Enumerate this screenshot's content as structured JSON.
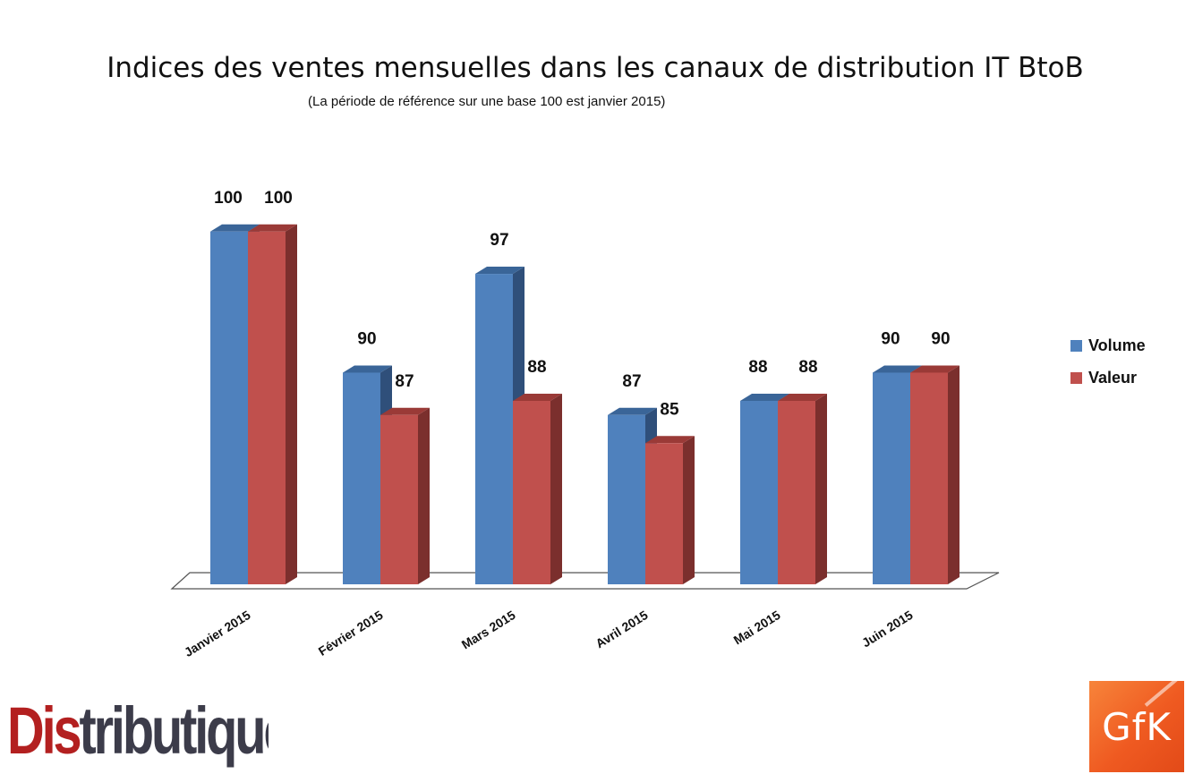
{
  "chart_data": {
    "type": "bar",
    "title": "Indices des ventes mensuelles dans les canaux de distribution IT BtoB",
    "subtitle": "(La période de référence sur une base 100 est janvier 2015)",
    "categories": [
      "Janvier 2015",
      "Février 2015",
      "Mars 2015",
      "Avril 2015",
      "Mai 2015",
      "Juin 2015"
    ],
    "series": [
      {
        "name": "Volume",
        "values": [
          100,
          90,
          97,
          87,
          88,
          90
        ],
        "color": "#4f81bd",
        "side_color": "#2f4f7a",
        "top_color": "#3a6598"
      },
      {
        "name": "Valeur",
        "values": [
          100,
          87,
          88,
          85,
          88,
          90
        ],
        "color": "#c0504d",
        "side_color": "#7b2f2d",
        "top_color": "#9a3a37"
      }
    ],
    "ylim": [
      75,
      100
    ],
    "style": "3d-clustered-column",
    "grid": false,
    "legend_position": "right",
    "data_labels": true
  },
  "logos": {
    "left": {
      "text_first": "Dis",
      "text_rest": "tributique"
    },
    "right": {
      "text": "GfK"
    }
  }
}
